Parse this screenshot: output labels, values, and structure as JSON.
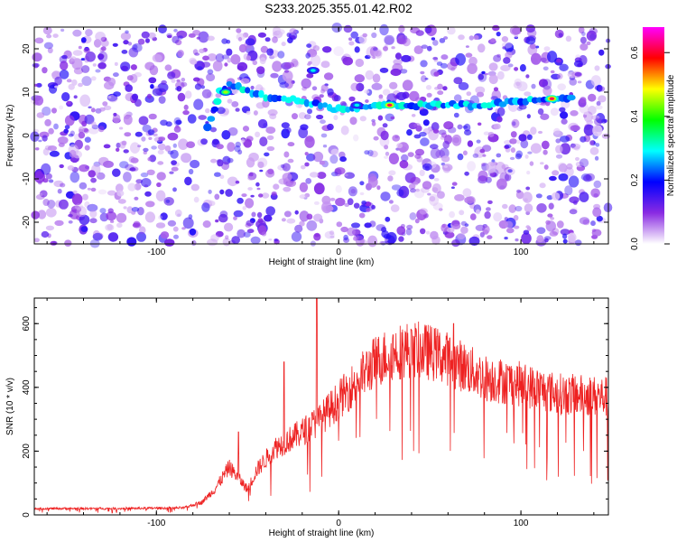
{
  "figure_title": "S233.2025.355.01.42.R02",
  "chart_data": [
    {
      "type": "heatmap",
      "xlabel": "Height of straight line (km)",
      "ylabel": "Frequency (Hz)",
      "xlim": [
        -167,
        148
      ],
      "ylim": [
        -25,
        25
      ],
      "xticks": [
        -100,
        0,
        100
      ],
      "yticks": [
        -20,
        -10,
        0,
        10,
        20
      ],
      "colorbar": {
        "label": "Normalized spectral amplitude",
        "range": [
          0,
          0.68
        ],
        "ticks": [
          0.0,
          0.2,
          0.4,
          0.6
        ],
        "colormap": [
          "#ffffff",
          "#8a2be2",
          "#0000ff",
          "#00ffff",
          "#00ff00",
          "#ffff00",
          "#ff0000",
          "#ff00ff"
        ]
      },
      "ridge": [
        {
          "x": -72,
          "y": 2
        },
        {
          "x": -68,
          "y": 6
        },
        {
          "x": -65,
          "y": 10
        },
        {
          "x": -60,
          "y": 12
        },
        {
          "x": -55,
          "y": 11
        },
        {
          "x": -40,
          "y": 9
        },
        {
          "x": -20,
          "y": 8
        },
        {
          "x": 0,
          "y": 6
        },
        {
          "x": 20,
          "y": 7
        },
        {
          "x": 40,
          "y": 7
        },
        {
          "x": 60,
          "y": 7
        },
        {
          "x": 80,
          "y": 7
        },
        {
          "x": 100,
          "y": 8
        },
        {
          "x": 118,
          "y": 8.5
        },
        {
          "x": 130,
          "y": 8.5
        }
      ],
      "peaks": [
        {
          "x": -62,
          "y": 10,
          "amplitude": 0.45
        },
        {
          "x": 28,
          "y": 7,
          "amplitude": 0.62
        },
        {
          "x": 117,
          "y": 8.5,
          "amplitude": 0.62
        },
        {
          "x": -14,
          "y": 15,
          "amplitude": 0.3
        },
        {
          "x": 10,
          "y": 7,
          "amplitude": 0.3
        }
      ]
    },
    {
      "type": "line",
      "xlabel": "Height of straight line (km)",
      "ylabel": "SNR (10 * v/v)",
      "xlim": [
        -167,
        148
      ],
      "ylim": [
        0,
        680
      ],
      "xticks": [
        -100,
        0,
        100
      ],
      "yticks": [
        0,
        200,
        400,
        600
      ],
      "color": "#ee2222",
      "envelope": [
        {
          "x": -167,
          "y": 20
        },
        {
          "x": -120,
          "y": 20
        },
        {
          "x": -85,
          "y": 22
        },
        {
          "x": -75,
          "y": 40
        },
        {
          "x": -68,
          "y": 80
        },
        {
          "x": -60,
          "y": 150
        },
        {
          "x": -50,
          "y": 80
        },
        {
          "x": -45,
          "y": 140
        },
        {
          "x": -35,
          "y": 210
        },
        {
          "x": -20,
          "y": 260
        },
        {
          "x": -10,
          "y": 300
        },
        {
          "x": 0,
          "y": 360
        },
        {
          "x": 10,
          "y": 420
        },
        {
          "x": 20,
          "y": 480
        },
        {
          "x": 30,
          "y": 510
        },
        {
          "x": 40,
          "y": 520
        },
        {
          "x": 50,
          "y": 510
        },
        {
          "x": 60,
          "y": 490
        },
        {
          "x": 70,
          "y": 460
        },
        {
          "x": 80,
          "y": 430
        },
        {
          "x": 100,
          "y": 410
        },
        {
          "x": 120,
          "y": 380
        },
        {
          "x": 148,
          "y": 370
        }
      ],
      "spikes": [
        {
          "x": -12,
          "y": 680
        },
        {
          "x": -30,
          "y": 480
        },
        {
          "x": 63,
          "y": 600
        },
        {
          "x": 54,
          "y": 560
        },
        {
          "x": 40,
          "y": 580
        },
        {
          "x": -55,
          "y": 260
        }
      ]
    }
  ]
}
